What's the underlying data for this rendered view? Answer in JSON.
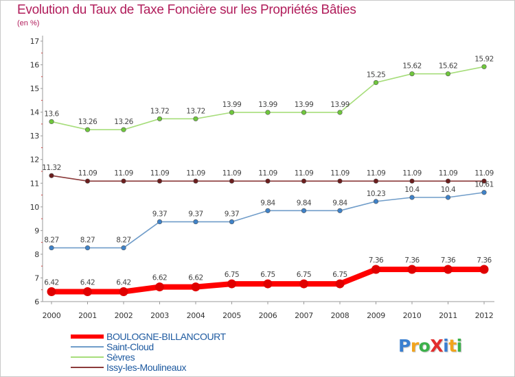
{
  "title": "Evolution du Taux de Taxe Foncière sur les Propriétés Bâties",
  "unit_label": "(en %)",
  "logo": {
    "text": "ProXiti",
    "letters": [
      {
        "ch": "P",
        "color": "#3a7fd0"
      },
      {
        "ch": "r",
        "color": "#f2a41c"
      },
      {
        "ch": "o",
        "color": "#3bb14a"
      },
      {
        "ch": "X",
        "color": "#e32d2d"
      },
      {
        "ch": "i",
        "color": "#3a7fd0"
      },
      {
        "ch": "t",
        "color": "#f2a41c"
      },
      {
        "ch": "i",
        "color": "#3bb14a"
      }
    ]
  },
  "chart_data": {
    "type": "line",
    "title": "Evolution du Taux de Taxe Foncière sur les Propriétés Bâties",
    "ylabel": "(en %)",
    "xlabel": "",
    "x": [
      "2000",
      "2001",
      "2002",
      "2003",
      "2004",
      "2005",
      "2006",
      "2007",
      "2008",
      "2009",
      "2010",
      "2011",
      "2012"
    ],
    "ylim": [
      6,
      17
    ],
    "yticks": [
      6,
      7,
      8,
      9,
      10,
      11,
      12,
      13,
      14,
      15,
      16,
      17
    ],
    "grid": false,
    "legend_position": "bottom-left",
    "series": [
      {
        "name": "BOULOGNE-BILLANCOURT",
        "color": "#ff0000",
        "marker_color": "#e00000",
        "emphasis": true,
        "values": [
          6.42,
          6.42,
          6.42,
          6.62,
          6.62,
          6.75,
          6.75,
          6.75,
          6.75,
          7.36,
          7.36,
          7.36,
          7.36
        ],
        "labels": [
          "6.42",
          "6.42",
          "6.42",
          "6.62",
          "6.62",
          "6.75",
          "6.75",
          "6.75",
          "6.75",
          "7.36",
          "7.36",
          "7.36",
          "7.36"
        ]
      },
      {
        "name": "Saint-Cloud",
        "color": "#6f9cc9",
        "marker_color": "#3f82c8",
        "emphasis": false,
        "values": [
          8.27,
          8.27,
          8.27,
          9.37,
          9.37,
          9.37,
          9.84,
          9.84,
          9.84,
          10.23,
          10.4,
          10.4,
          10.61
        ],
        "labels": [
          "8.27",
          "8.27",
          "8.27",
          "9.37",
          "9.37",
          "9.37",
          "9.84",
          "9.84",
          "9.84",
          "10.23",
          "10.4",
          "10.4",
          "10.61"
        ]
      },
      {
        "name": "Sèvres",
        "color": "#a6dd7a",
        "marker_color": "#6fc73c",
        "emphasis": false,
        "values": [
          13.6,
          13.26,
          13.26,
          13.72,
          13.72,
          13.99,
          13.99,
          13.99,
          13.99,
          15.25,
          15.62,
          15.62,
          15.92
        ],
        "labels": [
          "13.6",
          "13.26",
          "13.26",
          "13.72",
          "13.72",
          "13.99",
          "13.99",
          "13.99",
          "13.99",
          "15.25",
          "15.62",
          "15.62",
          "15.92"
        ]
      },
      {
        "name": "Issy-les-Moulineaux",
        "color": "#8b3a3a",
        "marker_color": "#6b1e1e",
        "emphasis": false,
        "values": [
          11.32,
          11.09,
          11.09,
          11.09,
          11.09,
          11.09,
          11.09,
          11.09,
          11.09,
          11.09,
          11.09,
          11.09,
          11.09
        ],
        "labels": [
          "11.32",
          "11.09",
          "11.09",
          "11.09",
          "11.09",
          "11.09",
          "11.09",
          "11.09",
          "11.09",
          "11.09",
          "11.09",
          "11.09",
          "11.09"
        ]
      }
    ]
  }
}
